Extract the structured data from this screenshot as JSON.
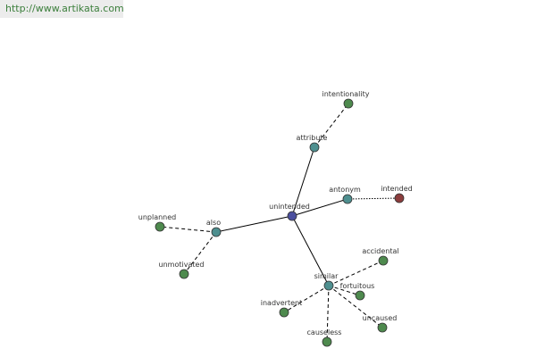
{
  "header": {
    "url": "http://www.artikata.com"
  },
  "nodes": [
    {
      "label": "unintended"
    },
    {
      "label": "attribute"
    },
    {
      "label": "intentionality"
    },
    {
      "label": "antonym"
    },
    {
      "label": "intended"
    },
    {
      "label": "also"
    },
    {
      "label": "unplanned"
    },
    {
      "label": "unmotivated"
    },
    {
      "label": "similar"
    },
    {
      "label": "accidental"
    },
    {
      "label": "fortuitous"
    },
    {
      "label": "uncaused"
    },
    {
      "label": "causeless"
    },
    {
      "label": "inadvertent"
    }
  ]
}
